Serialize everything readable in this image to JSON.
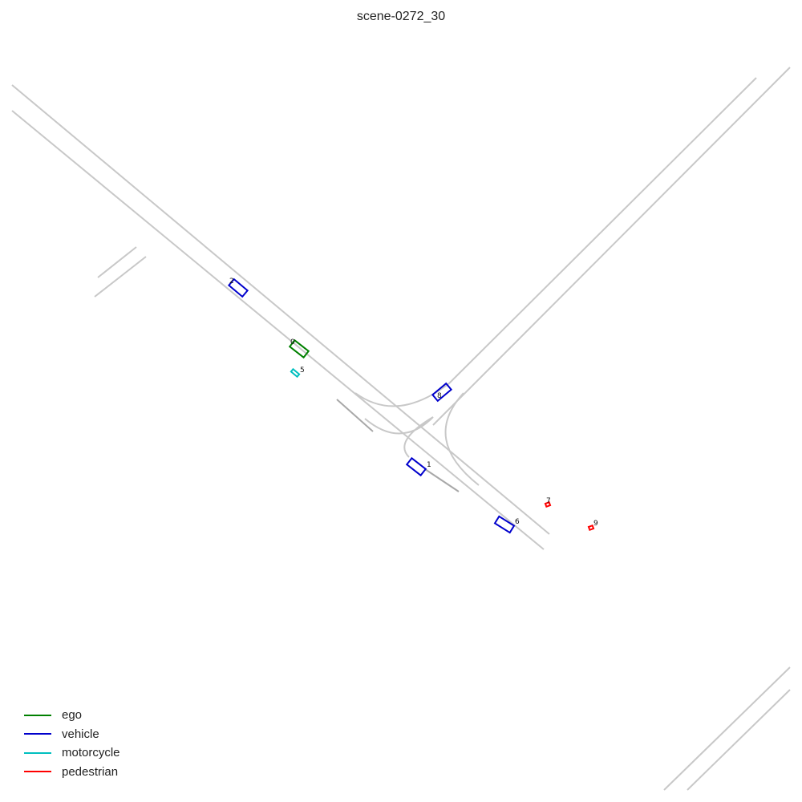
{
  "title": "scene-0272_30",
  "legend": [
    {
      "label": "ego",
      "color": "#008000"
    },
    {
      "label": "vehicle",
      "color": "#0000cc"
    },
    {
      "label": "motorcycle",
      "color": "#00bfbf"
    },
    {
      "label": "pedestrian",
      "color": "#ff0000"
    }
  ],
  "objects": [
    {
      "id": "0",
      "category": "ego"
    },
    {
      "id": "1",
      "category": "vehicle"
    },
    {
      "id": "2",
      "category": "vehicle"
    },
    {
      "id": "5",
      "category": "motorcycle"
    },
    {
      "id": "6",
      "category": "vehicle"
    },
    {
      "id": "7",
      "category": "pedestrian"
    },
    {
      "id": "8",
      "category": "vehicle"
    },
    {
      "id": "9",
      "category": "pedestrian"
    }
  ]
}
